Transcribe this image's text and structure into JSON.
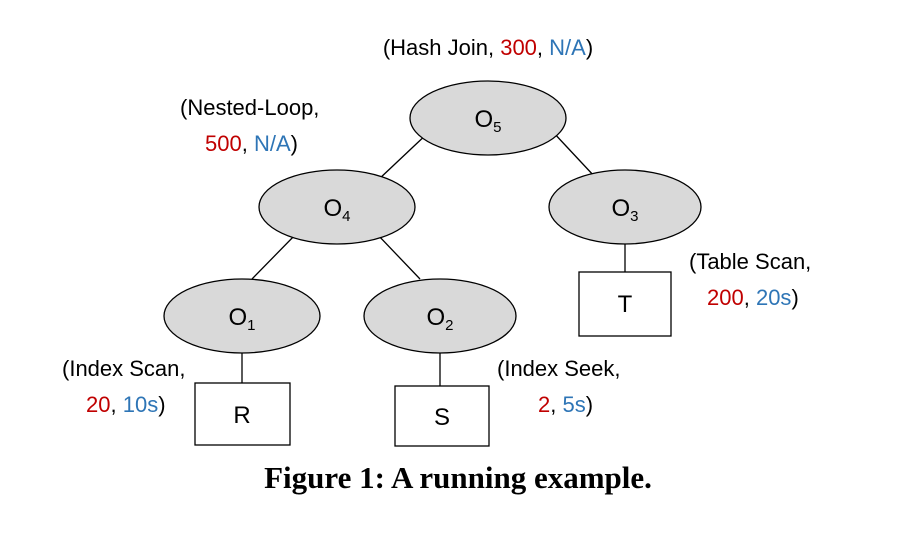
{
  "operators": {
    "o5": {
      "name": "O",
      "sub": "5"
    },
    "o4": {
      "name": "O",
      "sub": "4"
    },
    "o3": {
      "name": "O",
      "sub": "3"
    },
    "o1": {
      "name": "O",
      "sub": "1"
    },
    "o2": {
      "name": "O",
      "sub": "2"
    }
  },
  "tables": {
    "r": "R",
    "s": "S",
    "t": "T"
  },
  "annotations": {
    "o5": {
      "open": "(Hash Join, ",
      "cost": "300",
      "sep": ", ",
      "time": "N/A",
      "close": ")"
    },
    "o4": {
      "line1": "(Nested-Loop,",
      "cost": "500",
      "sep": ", ",
      "time": "N/A",
      "close": ")"
    },
    "o3": {
      "line1": "(Table Scan,",
      "cost": "200",
      "sep": ", ",
      "time": "20s",
      "close": ")"
    },
    "o1": {
      "line1": "(Index Scan,",
      "cost": "20",
      "sep": ",  ",
      "time": "10s",
      "close": ")"
    },
    "o2": {
      "line1": "(Index Seek,",
      "cost": "2",
      "sep": ", ",
      "time": "5s",
      "close": ")"
    }
  },
  "colors": {
    "cost": "#c00000",
    "time": "#2e75b6",
    "node_fill": "#d9d9d9"
  },
  "caption": "Figure 1: A running example."
}
